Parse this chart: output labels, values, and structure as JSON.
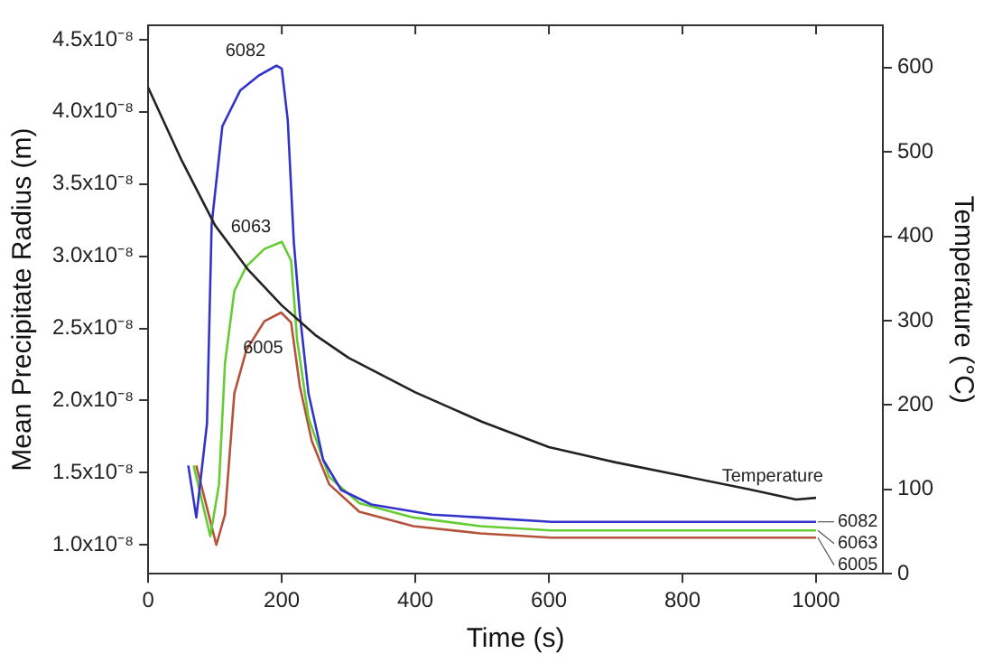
{
  "chart_data": {
    "type": "line",
    "xlabel": "Time (s)",
    "ylabel": "Mean Precipitate Radius (m)",
    "y2label": "Temperature (°C)",
    "xlim": [
      0,
      1100
    ],
    "xticks": [
      0,
      200,
      400,
      600,
      800,
      1000
    ],
    "ylim": [
      8e-09,
      4.6e-08
    ],
    "yticks": [
      {
        "value": 1e-08,
        "label": "1.0x10⁻⁸"
      },
      {
        "value": 1.5e-08,
        "label": "1.5x10⁻⁸"
      },
      {
        "value": 2e-08,
        "label": "2.0x10⁻⁸"
      },
      {
        "value": 2.5e-08,
        "label": "2.5x10⁻⁸"
      },
      {
        "value": 3e-08,
        "label": "3.0x10⁻⁸"
      },
      {
        "value": 3.5e-08,
        "label": "3.5x10⁻⁸"
      },
      {
        "value": 4e-08,
        "label": "4.0x10⁻⁸"
      },
      {
        "value": 4.5e-08,
        "label": "4.5x10⁻⁸"
      }
    ],
    "y2lim": [
      0,
      650
    ],
    "y2ticks": [
      0,
      100,
      200,
      300,
      400,
      500,
      600
    ],
    "grid": false,
    "legend": false,
    "marker": "none",
    "line_style": "solid",
    "series": [
      {
        "name": "Temperature",
        "color": "#222222",
        "axis": "y2",
        "x": [
          0,
          50,
          100,
          150,
          200,
          250,
          300,
          400,
          500,
          600,
          700,
          800,
          900,
          970,
          1000
        ],
        "values": [
          576,
          490,
          413,
          360,
          318,
          283,
          256,
          215,
          180,
          150,
          132,
          116,
          100,
          88,
          90
        ]
      },
      {
        "name": "6082",
        "color": "#3333cc",
        "x": [
          60,
          72,
          88,
          95,
          111,
          138,
          165,
          192,
          200,
          209,
          218,
          227,
          240,
          262,
          289,
          334,
          425,
          497,
          604,
          1000
        ],
        "values": [
          1.55e-08,
          1.19e-08,
          1.84e-08,
          3.22e-08,
          3.9e-08,
          4.15e-08,
          4.25e-08,
          4.32e-08,
          4.3e-08,
          3.94e-08,
          3.1e-08,
          2.6e-08,
          2.05e-08,
          1.59e-08,
          1.38e-08,
          1.28e-08,
          1.21e-08,
          1.19e-08,
          1.16e-08,
          1.16e-08
        ]
      },
      {
        "name": "6063",
        "color": "#66cc33",
        "x": [
          68,
          93,
          106,
          115,
          129,
          147,
          174,
          200,
          214,
          223,
          240,
          271,
          316,
          397,
          497,
          604,
          1000
        ],
        "values": [
          1.55e-08,
          1.06e-08,
          1.42e-08,
          2.26e-08,
          2.76e-08,
          2.93e-08,
          3.05e-08,
          3.1e-08,
          2.97e-08,
          2.42e-08,
          1.88e-08,
          1.47e-08,
          1.29e-08,
          1.19e-08,
          1.13e-08,
          1.1e-08,
          1.1e-08
        ]
      },
      {
        "name": "6005",
        "color": "#b5523b",
        "x": [
          72,
          102,
          115,
          129,
          147,
          174,
          199,
          214,
          227,
          245,
          271,
          316,
          397,
          497,
          604,
          1000
        ],
        "values": [
          1.55e-08,
          1e-08,
          1.21e-08,
          2.05e-08,
          2.35e-08,
          2.55e-08,
          2.61e-08,
          2.54e-08,
          2.1e-08,
          1.72e-08,
          1.42e-08,
          1.23e-08,
          1.13e-08,
          1.08e-08,
          1.05e-08,
          1.05e-08
        ]
      }
    ]
  }
}
